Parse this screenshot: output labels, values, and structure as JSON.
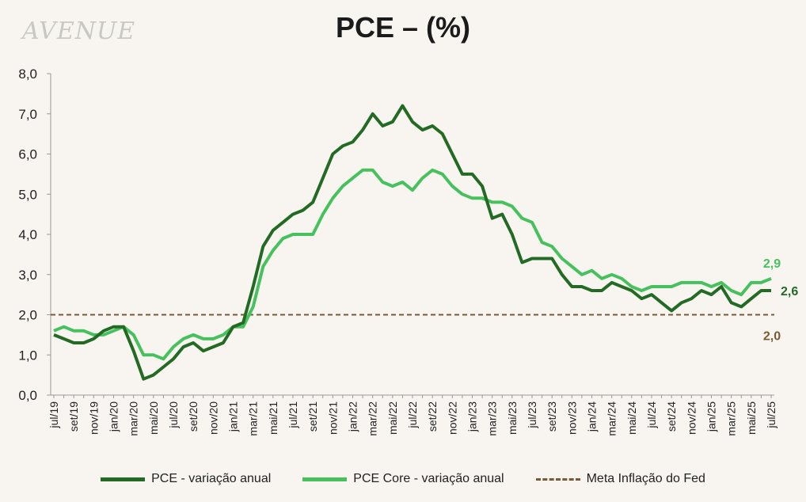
{
  "logo": "AVENUE",
  "title": "PCE – (%)",
  "colors": {
    "background": "#f8f5f0",
    "pce": "#236b24",
    "pce_core": "#47c15d",
    "fed_target": "#7a5a34",
    "axis": "#999999",
    "text": "#222222"
  },
  "legend": {
    "pce": "PCE - variação anual",
    "pce_core": "PCE Core - variação anual",
    "fed_target": "Meta Inflação do Fed"
  },
  "end_labels": {
    "pce_core": "2,9",
    "pce": "2,6",
    "fed_target": "2,0"
  },
  "chart_data": {
    "type": "line",
    "title": "PCE – (%)",
    "ylim": [
      0,
      8
    ],
    "yticks": [
      "0,0",
      "1,0",
      "2,0",
      "3,0",
      "4,0",
      "5,0",
      "6,0",
      "7,0",
      "8,0"
    ],
    "grid": false,
    "legend_position": "bottom",
    "x": [
      "jul/19",
      "ago/19",
      "set/19",
      "out/19",
      "nov/19",
      "dez/19",
      "jan/20",
      "fev/20",
      "mar/20",
      "abr/20",
      "mai/20",
      "jun/20",
      "jul/20",
      "ago/20",
      "set/20",
      "out/20",
      "nov/20",
      "dez/20",
      "jan/21",
      "fev/21",
      "mar/21",
      "abr/21",
      "mai/21",
      "jun/21",
      "jul/21",
      "ago/21",
      "set/21",
      "out/21",
      "nov/21",
      "dez/21",
      "jan/22",
      "fev/22",
      "mar/22",
      "abr/22",
      "mai/22",
      "jun/22",
      "jul/22",
      "ago/22",
      "set/22",
      "out/22",
      "nov/22",
      "dez/22",
      "jan/23",
      "fev/23",
      "mar/23",
      "abr/23",
      "mai/23",
      "jun/23",
      "jul/23",
      "ago/23",
      "set/23",
      "out/23",
      "nov/23",
      "dez/23",
      "jan/24",
      "fev/24",
      "mar/24",
      "abr/24",
      "mai/24",
      "jun/24",
      "jul/24",
      "ago/24",
      "set/24",
      "out/24",
      "nov/24",
      "dez/24",
      "jan/25",
      "fev/25",
      "mar/25",
      "abr/25",
      "mai/25",
      "jun/25",
      "jul/25"
    ],
    "xticks": [
      "jul/19",
      "set/19",
      "nov/19",
      "jan/20",
      "mar/20",
      "mai/20",
      "jul/20",
      "set/20",
      "nov/20",
      "jan/21",
      "mar/21",
      "mai/21",
      "jul/21",
      "set/21",
      "nov/21",
      "jan/22",
      "mar/22",
      "mai/22",
      "jul/22",
      "set/22",
      "nov/22",
      "jan/23",
      "mar/23",
      "mai/23",
      "jul/23",
      "set/23",
      "nov/23",
      "jan/24",
      "mar/24",
      "mai/24",
      "jul/24",
      "set/24",
      "nov/24",
      "jan/25",
      "mar/25",
      "mai/25",
      "jul/25"
    ],
    "series": [
      {
        "name": "PCE - variação anual",
        "values": [
          1.5,
          1.4,
          1.3,
          1.3,
          1.4,
          1.6,
          1.7,
          1.7,
          1.1,
          0.4,
          0.5,
          0.7,
          0.9,
          1.2,
          1.3,
          1.1,
          1.2,
          1.3,
          1.7,
          1.8,
          2.7,
          3.7,
          4.1,
          4.3,
          4.5,
          4.6,
          4.8,
          5.4,
          6.0,
          6.2,
          6.3,
          6.6,
          7.0,
          6.7,
          6.8,
          7.2,
          6.8,
          6.6,
          6.7,
          6.5,
          6.0,
          5.5,
          5.5,
          5.2,
          4.4,
          4.5,
          4.0,
          3.3,
          3.4,
          3.4,
          3.4,
          3.0,
          2.7,
          2.7,
          2.6,
          2.6,
          2.8,
          2.7,
          2.6,
          2.4,
          2.5,
          2.3,
          2.1,
          2.3,
          2.4,
          2.6,
          2.5,
          2.7,
          2.3,
          2.2,
          2.4,
          2.6,
          2.6
        ]
      },
      {
        "name": "PCE Core - variação anual",
        "values": [
          1.6,
          1.7,
          1.6,
          1.6,
          1.5,
          1.5,
          1.6,
          1.7,
          1.5,
          1.0,
          1.0,
          0.9,
          1.2,
          1.4,
          1.5,
          1.4,
          1.4,
          1.5,
          1.7,
          1.7,
          2.2,
          3.2,
          3.6,
          3.9,
          4.0,
          4.0,
          4.0,
          4.5,
          4.9,
          5.2,
          5.4,
          5.6,
          5.6,
          5.3,
          5.2,
          5.3,
          5.1,
          5.4,
          5.6,
          5.5,
          5.2,
          5.0,
          4.9,
          4.9,
          4.8,
          4.8,
          4.7,
          4.4,
          4.3,
          3.8,
          3.7,
          3.4,
          3.2,
          3.0,
          3.1,
          2.9,
          3.0,
          2.9,
          2.7,
          2.6,
          2.7,
          2.7,
          2.7,
          2.8,
          2.8,
          2.8,
          2.7,
          2.8,
          2.6,
          2.5,
          2.8,
          2.8,
          2.9
        ]
      },
      {
        "name": "Meta Inflação do Fed",
        "constant": 2.0
      }
    ]
  }
}
